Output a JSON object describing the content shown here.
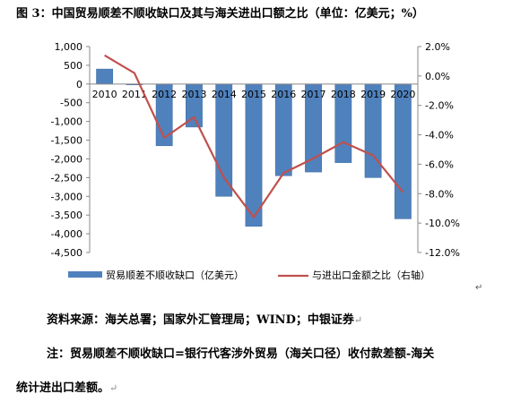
{
  "title": "图 3：中国贸易顺差不顺收缺口及其与海关进出口额之比（单位：亿美元；%）",
  "chart_data": {
    "type": "bar",
    "categories": [
      "2010",
      "2011",
      "2012",
      "2013",
      "2014",
      "2015",
      "2016",
      "2017",
      "2018",
      "2019",
      "2020"
    ],
    "series": [
      {
        "name": "贸易顺差不顺收缺口（亿美元）",
        "type": "bar",
        "axis": "left",
        "values": [
          400,
          -20,
          -1650,
          -1150,
          -3000,
          -3800,
          -2450,
          -2350,
          -2100,
          -2500,
          -3600
        ]
      },
      {
        "name": "与进出口金额之比（右轴）",
        "type": "line",
        "axis": "right",
        "values": [
          1.4,
          0.2,
          -4.2,
          -2.8,
          -6.9,
          -9.6,
          -6.6,
          -5.6,
          -4.5,
          -5.4,
          -7.9
        ]
      }
    ],
    "y_left": {
      "ylim": [
        -4500,
        1000
      ],
      "ticks": [
        "1,000",
        "500",
        "0",
        "-500",
        "-1,000",
        "-1,500",
        "-2,000",
        "-2,500",
        "-3,000",
        "-3,500",
        "-4,000",
        "-4,500"
      ]
    },
    "y_right": {
      "ylim": [
        -12,
        2
      ],
      "ticks": [
        "2.0%",
        "0.0%",
        "-2.0%",
        "-4.0%",
        "-6.0%",
        "-8.0%",
        "-10.0%",
        "-12.0%"
      ]
    },
    "legend_position": "bottom",
    "grid": false,
    "colors": {
      "bar": "#4f81bd",
      "bar_edge": "#3b6aa0",
      "line": "#c0504d"
    }
  },
  "source": "资料来源：海关总署；国家外汇管理局；WIND；中银证券",
  "note_line1": "注：贸易顺差不顺收缺口=银行代客涉外贸易（海关口径）收付款差额-海关",
  "note_line2": "统计进出口差额。"
}
